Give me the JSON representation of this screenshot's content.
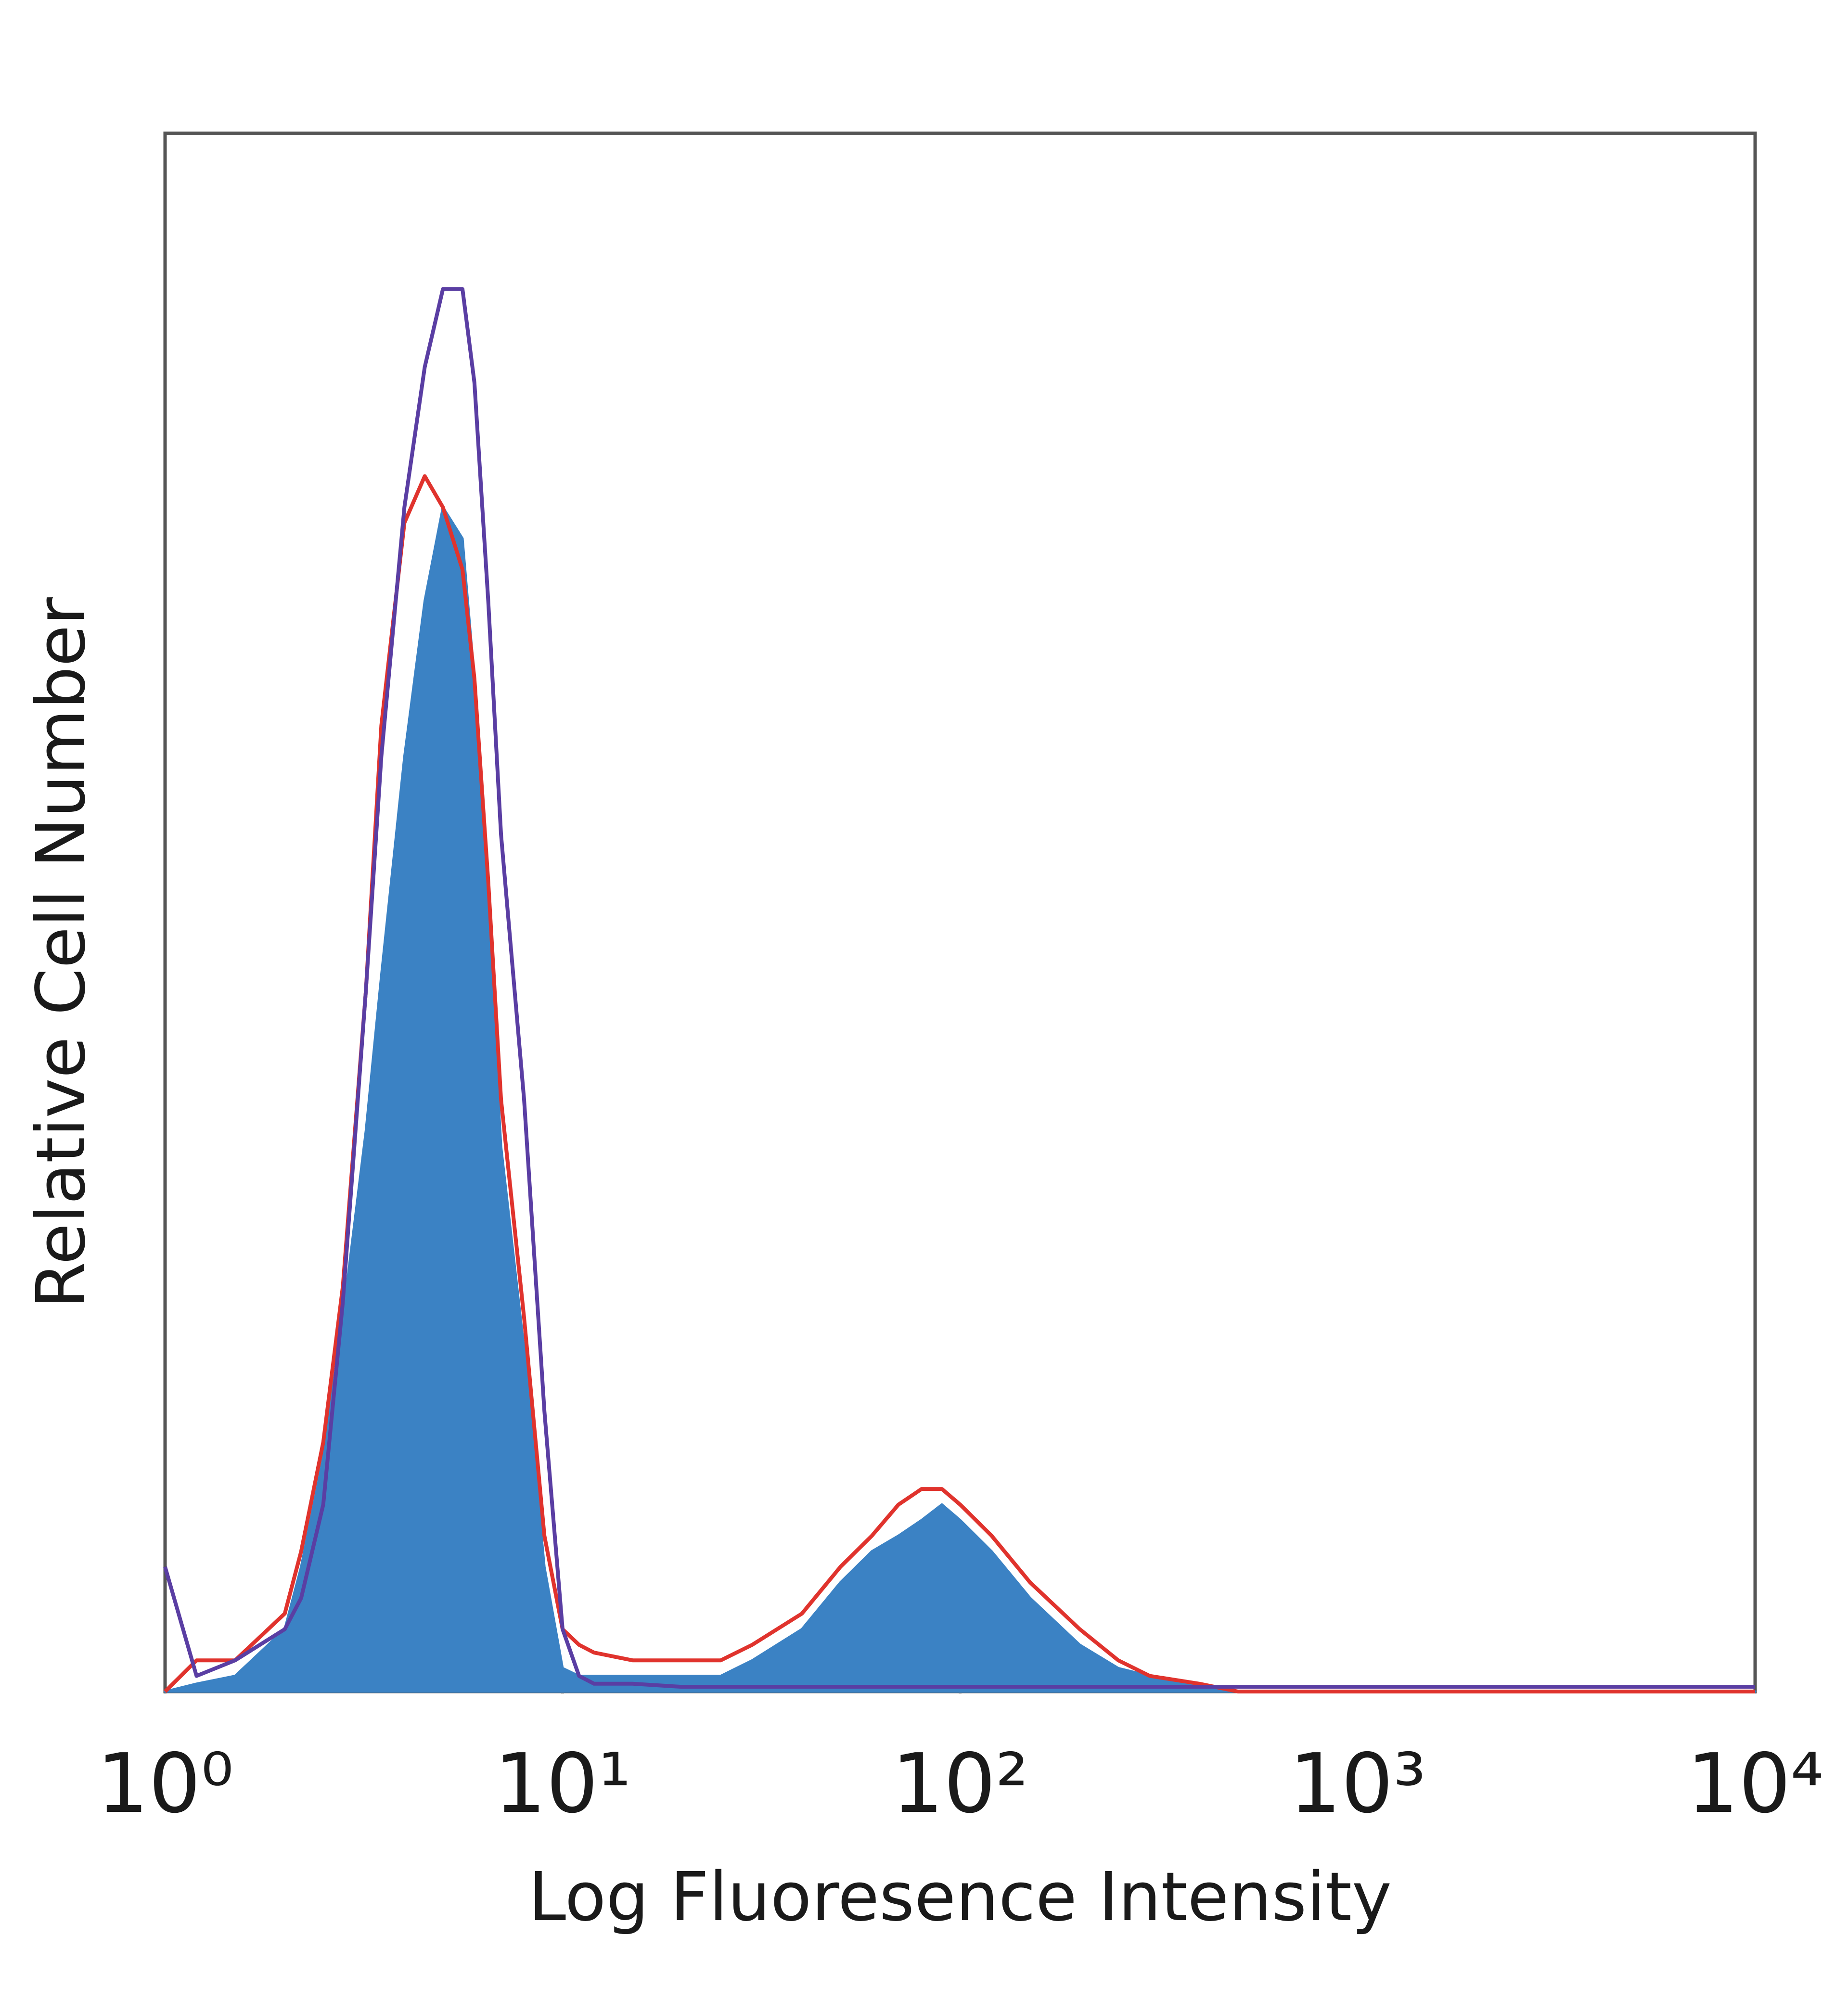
{
  "chart_data": {
    "type": "histogram-overlay",
    "xlabel": "Log Fluoresence Intensity",
    "ylabel": "Relative Cell Number",
    "xscale": "log",
    "xlim": [
      1,
      10000
    ],
    "xticks": [
      {
        "value": 1,
        "label": "10⁰"
      },
      {
        "value": 10,
        "label": "10¹"
      },
      {
        "value": 100,
        "label": "10²"
      },
      {
        "value": 1000,
        "label": "10³"
      },
      {
        "value": 10000,
        "label": "10⁴"
      }
    ],
    "ylim": [
      0,
      100
    ],
    "x": [
      1,
      1.2,
      1.5,
      2,
      2.2,
      2.5,
      2.8,
      3.2,
      3.5,
      4,
      4.5,
      5,
      5.6,
      6,
      6.5,
      7,
      8,
      9,
      10,
      11,
      12,
      15,
      20,
      25,
      30,
      40,
      50,
      60,
      70,
      80,
      90,
      100,
      120,
      150,
      200,
      250,
      300,
      400,
      500,
      600,
      1000,
      10000
    ],
    "series": [
      {
        "color": "#3b82c4",
        "fill": true,
        "values": [
          0,
          0.5,
          1,
          4,
          8,
          15,
          24,
          36,
          46,
          60,
          70,
          76,
          74,
          65,
          50,
          35,
          22,
          8,
          1.5,
          1,
          1,
          1,
          1,
          1,
          2,
          4,
          7,
          9,
          10,
          11,
          12,
          11,
          9,
          6,
          3,
          1.5,
          1,
          0.5,
          0,
          0,
          0,
          0
        ]
      },
      {
        "color": "#e0332d",
        "fill": false,
        "values": [
          0,
          2,
          2,
          5,
          9,
          16,
          26,
          45,
          62,
          75,
          78,
          76,
          72,
          65,
          52,
          38,
          24,
          10,
          4,
          3,
          2.5,
          2,
          2,
          2,
          3,
          5,
          8,
          10,
          12,
          13,
          13,
          12,
          10,
          7,
          4,
          2,
          1,
          0.5,
          0,
          0,
          0,
          0
        ]
      },
      {
        "color": "#5a3ea3",
        "fill": false,
        "values": [
          8,
          1,
          2,
          4,
          6,
          12,
          25,
          45,
          60,
          76,
          85,
          90,
          90,
          84,
          70,
          55,
          38,
          18,
          4,
          1,
          0.5,
          0.5,
          0.3,
          0.3,
          0.3,
          0.3,
          0.3,
          0.3,
          0.3,
          0.3,
          0.3,
          0.3,
          0.3,
          0.3,
          0.3,
          0.3,
          0.3,
          0.3,
          0.3,
          0.3,
          0.3,
          0.3
        ]
      }
    ]
  }
}
